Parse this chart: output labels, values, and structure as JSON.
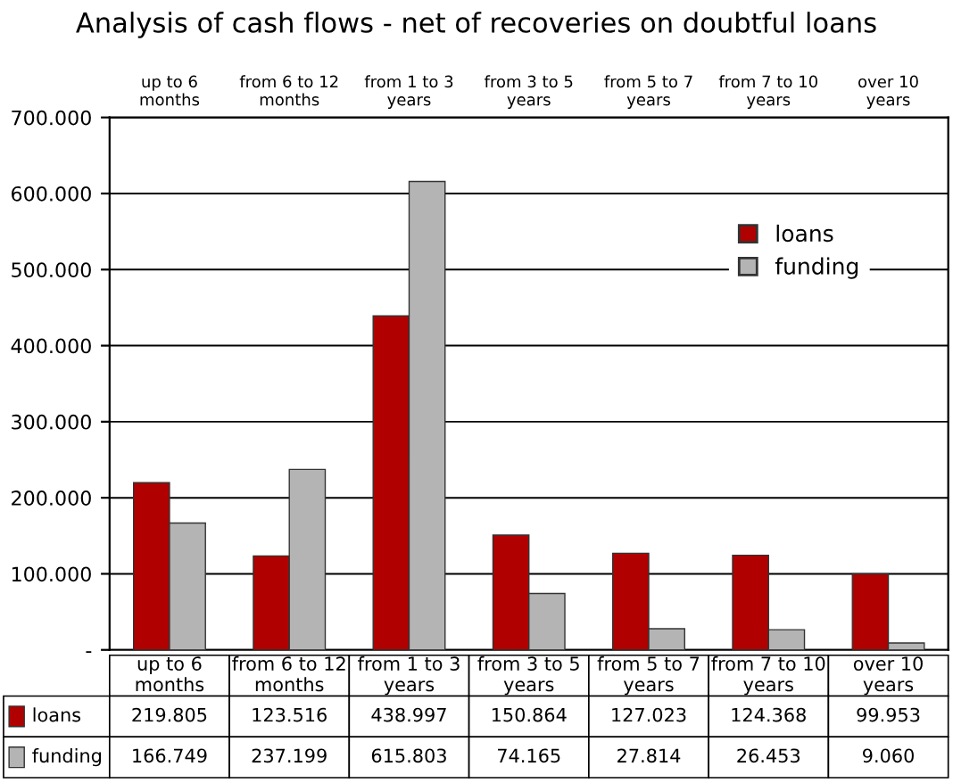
{
  "chart_data": {
    "type": "bar",
    "title": "Analysis of cash flows - net of recoveries on doubtful loans",
    "categories": [
      "up to 6 months",
      "from 6 to 12 months",
      "from 1 to 3 years",
      "from 3 to 5 years",
      "from 5 to 7 years",
      "from 7 to 10 years",
      "over 10 years"
    ],
    "series": [
      {
        "name": "loans",
        "color": "#b00000",
        "values": [
          219805,
          123516,
          438997,
          150864,
          127023,
          124368,
          99953
        ],
        "value_labels": [
          "219.805",
          "123.516",
          "438.997",
          "150.864",
          "127.023",
          "124.368",
          "99.953"
        ]
      },
      {
        "name": "funding",
        "color": "#b4b4b4",
        "values": [
          166749,
          237199,
          615803,
          74165,
          27814,
          26453,
          9060
        ],
        "value_labels": [
          "166.749",
          "237.199",
          "615.803",
          "74.165",
          "27.814",
          "26.453",
          "9.060"
        ]
      }
    ],
    "ylim": [
      0,
      700000
    ],
    "yticks": [
      {
        "value": 0,
        "label": "-"
      },
      {
        "value": 100000,
        "label": "100.000"
      },
      {
        "value": 200000,
        "label": "200.000"
      },
      {
        "value": 300000,
        "label": "300.000"
      },
      {
        "value": 400000,
        "label": "400.000"
      },
      {
        "value": 500000,
        "label": "500.000"
      },
      {
        "value": 600000,
        "label": "600.000"
      },
      {
        "value": 700000,
        "label": "700.000"
      }
    ],
    "grid": "y",
    "legend": "top right"
  }
}
